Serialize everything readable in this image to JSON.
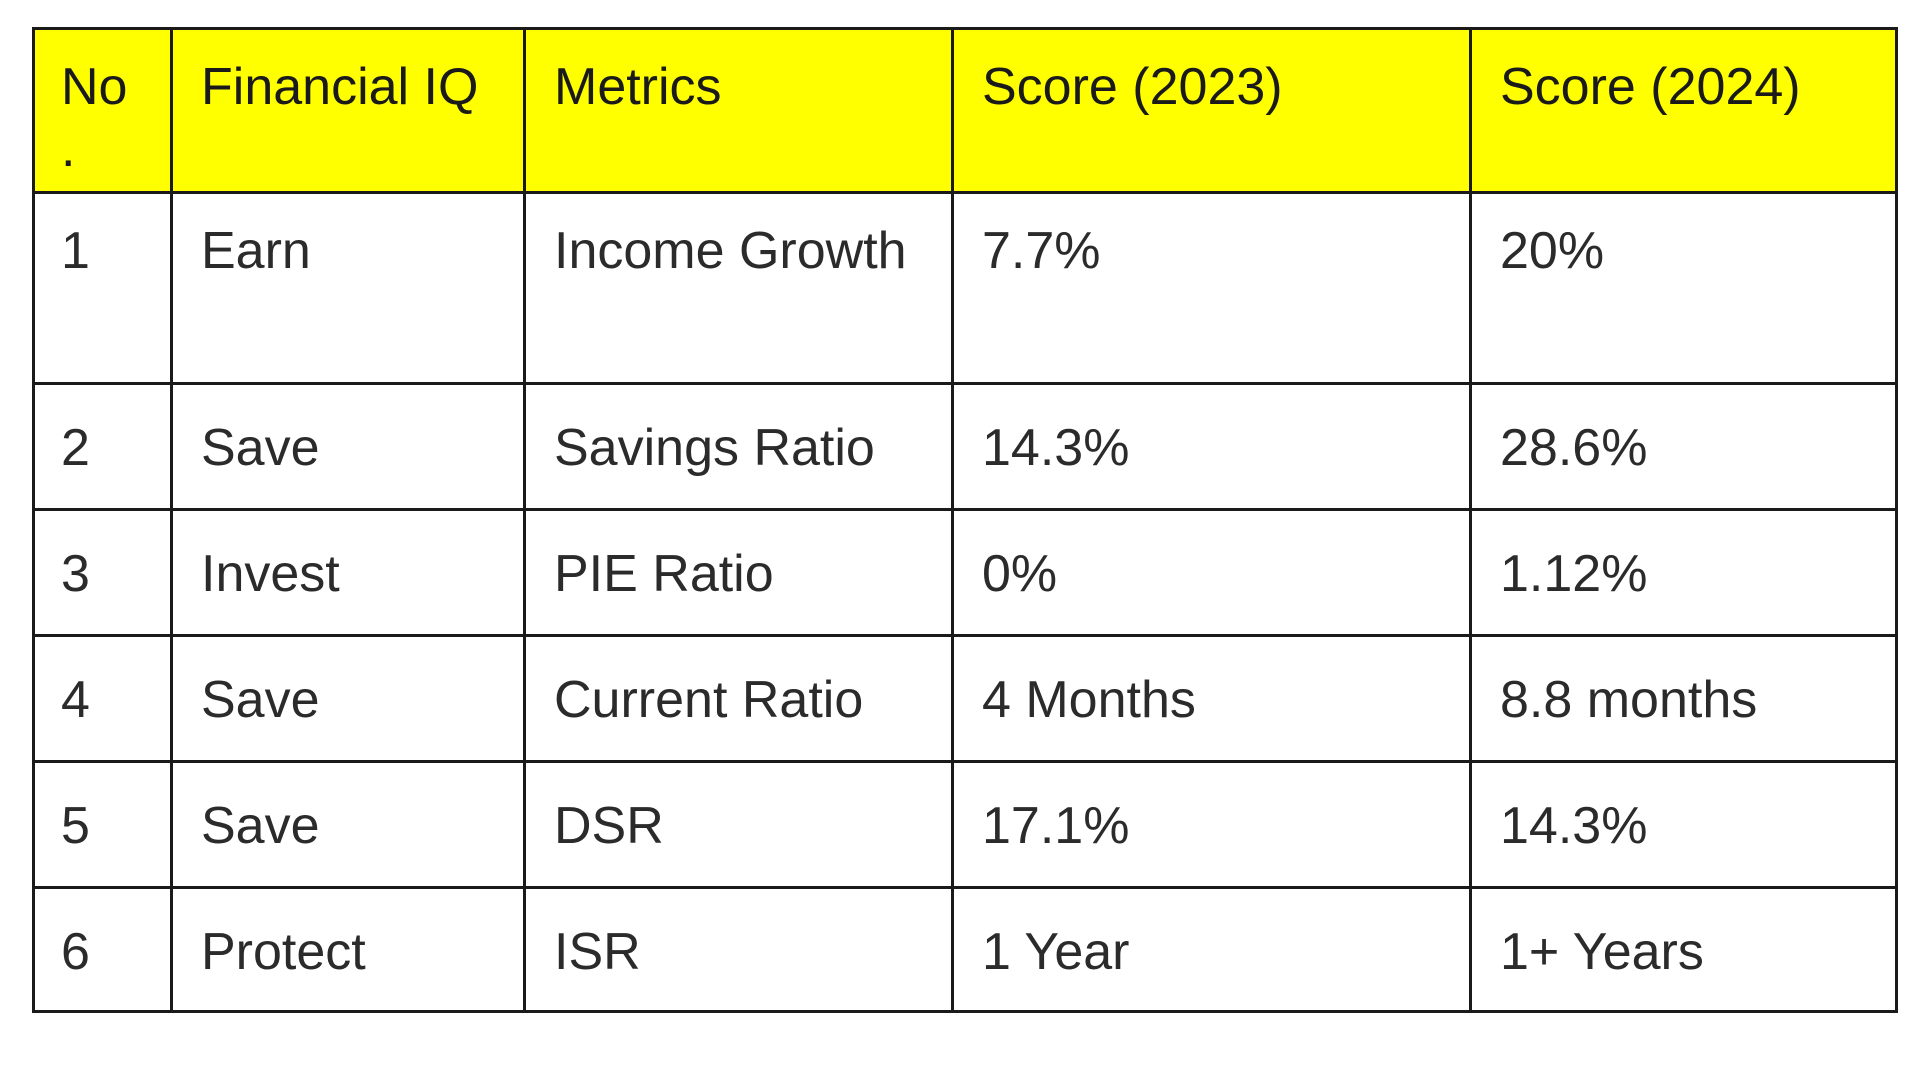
{
  "table": {
    "headers": [
      "No\n.",
      "Financial IQ",
      "Metrics",
      "Score (2023)",
      "Score (2024)"
    ],
    "rows": [
      [
        "1",
        "Earn",
        "Income Growth",
        "7.7%",
        "20%"
      ],
      [
        "2",
        "Save",
        "Savings Ratio",
        "14.3%",
        "28.6%"
      ],
      [
        "3",
        "Invest",
        "PIE Ratio",
        "0%",
        "1.12%"
      ],
      [
        "4",
        "Save",
        "Current Ratio",
        "4 Months",
        "8.8 months"
      ],
      [
        "5",
        "Save",
        "DSR",
        "17.1%",
        "14.3%"
      ],
      [
        "6",
        "Protect",
        "ISR",
        "1 Year",
        "1+ Years"
      ]
    ]
  },
  "colors": {
    "header_background": "#ffff00",
    "border": "#1a1a1a",
    "text": "#2b2b2b"
  }
}
